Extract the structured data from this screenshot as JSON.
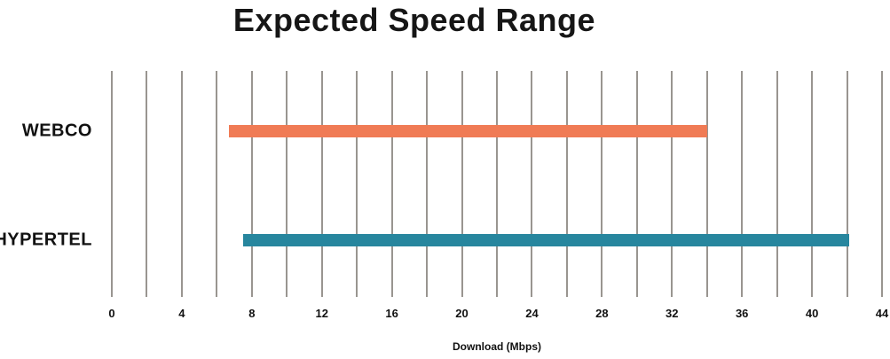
{
  "title": "Expected Speed Range",
  "chart_data": {
    "type": "bar",
    "orientation": "horizontal-range",
    "title": "Expected Speed Range",
    "xlabel": "Download (Mbps)",
    "ylabel": "",
    "categories": [
      "WEBCO",
      "HYPERTEL"
    ],
    "series": [
      {
        "name": "WEBCO",
        "range_min": 6.7,
        "range_max": 34,
        "color": "#F07B55"
      },
      {
        "name": "HYPERTEL",
        "range_min": 7.5,
        "range_max": 42.1,
        "color": "#27869E"
      }
    ],
    "xlim": [
      0,
      44
    ],
    "xticks": [
      0,
      4,
      8,
      12,
      16,
      20,
      24,
      28,
      32,
      36,
      40,
      44
    ],
    "gridline_step": 2,
    "grid": "vertical-only",
    "legend_position": "none"
  },
  "colors": {
    "gridline": "#999590",
    "text": "#111111",
    "background": "#FFFFFF"
  }
}
